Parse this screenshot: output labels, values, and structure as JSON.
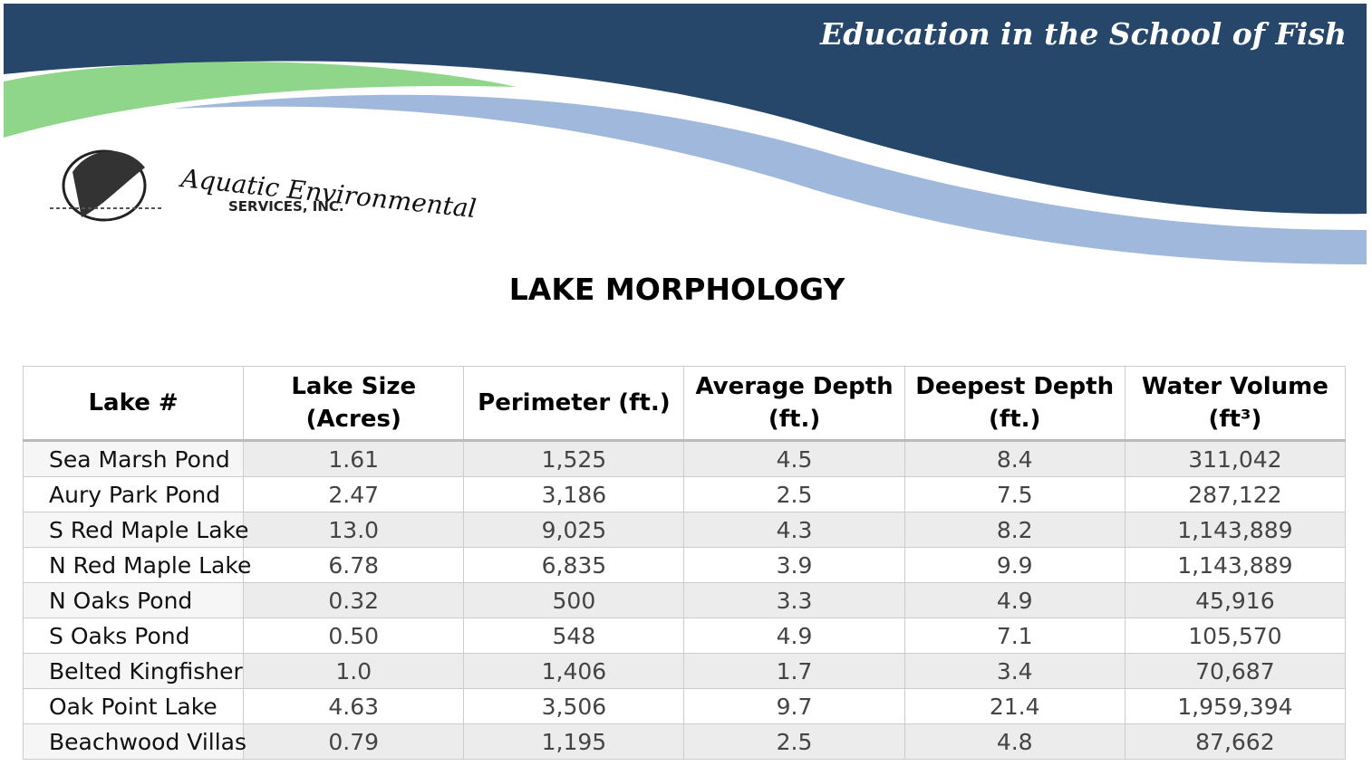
{
  "header": {
    "tagline": "Education in the School of Fish",
    "logo_name": "Aquatic Environmental",
    "logo_sub": "SERVICES, INC."
  },
  "title": "LAKE MORPHOLOGY",
  "table": {
    "columns": [
      [
        "Lake #"
      ],
      [
        "Lake Size",
        "(Acres)"
      ],
      [
        "Perimeter (ft.)"
      ],
      [
        "Average Depth",
        "(ft.)"
      ],
      [
        "Deepest Depth",
        "(ft.)"
      ],
      [
        "Water Volume",
        "(ft³)"
      ]
    ],
    "rows": [
      [
        "Sea Marsh Pond",
        "1.61",
        "1,525",
        "4.5",
        "8.4",
        "311,042"
      ],
      [
        "Aury Park Pond",
        "2.47",
        "3,186",
        "2.5",
        "7.5",
        "287,122"
      ],
      [
        "S Red Maple Lake",
        "13.0",
        "9,025",
        "4.3",
        "8.2",
        "1,143,889"
      ],
      [
        "N Red Maple Lake",
        "6.78",
        "6,835",
        "3.9",
        "9.9",
        "1,143,889"
      ],
      [
        "N Oaks Pond",
        "0.32",
        "500",
        "3.3",
        "4.9",
        "45,916"
      ],
      [
        "S Oaks Pond",
        "0.50",
        "548",
        "4.9",
        "7.1",
        "105,570"
      ],
      [
        "Belted Kingfisher",
        "1.0",
        "1,406",
        "1.7",
        "3.4",
        "70,687"
      ],
      [
        "Oak Point Lake",
        "4.63",
        "3,506",
        "9.7",
        "21.4",
        "1,959,394"
      ],
      [
        "Beachwood Villas",
        "0.79",
        "1,195",
        "2.5",
        "4.8",
        "87,662"
      ]
    ]
  }
}
